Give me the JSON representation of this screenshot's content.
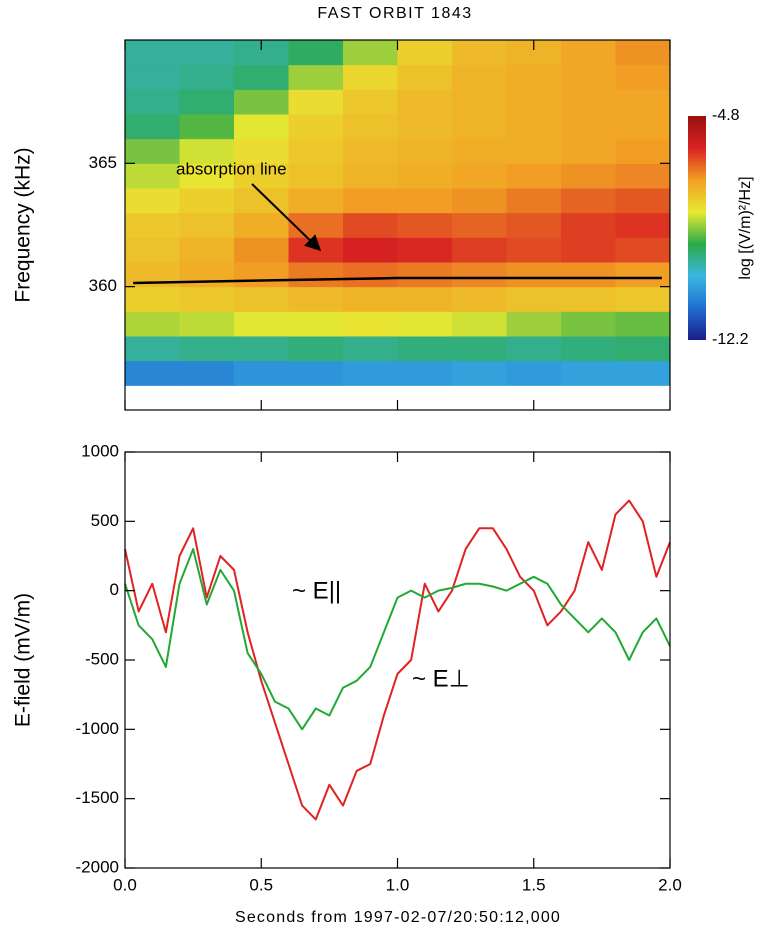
{
  "chart_data": [
    {
      "type": "heatmap",
      "title": "FAST ORBIT 1843",
      "ylabel": "Frequency (kHz)",
      "xbins": [
        0,
        0.2,
        0.4,
        0.6,
        0.8,
        1.0,
        1.2,
        1.4,
        1.6,
        1.8,
        2.0
      ],
      "ybins": [
        356,
        357,
        358,
        359,
        360,
        361,
        362,
        363,
        364,
        365,
        366,
        367,
        368,
        369,
        370
      ],
      "z": [
        [
          -10.8,
          -10.8,
          -10.6,
          -10.6,
          -10.5,
          -10.5,
          -10.4,
          -10.5,
          -10.4,
          -10.4
        ],
        [
          -9.6,
          -9.5,
          -9.5,
          -9.4,
          -9.5,
          -9.4,
          -9.4,
          -9.5,
          -9.4,
          -9.3
        ],
        [
          -8.3,
          -8.2,
          -8.0,
          -8.0,
          -7.9,
          -8.0,
          -8.1,
          -8.4,
          -8.6,
          -8.7
        ],
        [
          -7.6,
          -7.5,
          -7.4,
          -7.3,
          -7.2,
          -7.2,
          -7.3,
          -7.4,
          -7.4,
          -7.5
        ],
        [
          -7.3,
          -7.1,
          -6.9,
          -6.6,
          -6.5,
          -6.6,
          -6.7,
          -6.8,
          -6.8,
          -6.9
        ],
        [
          -7.4,
          -7.2,
          -6.8,
          -6.0,
          -5.8,
          -5.9,
          -6.1,
          -6.2,
          -6.1,
          -6.2
        ],
        [
          -7.5,
          -7.4,
          -7.1,
          -6.5,
          -6.2,
          -6.3,
          -6.4,
          -6.3,
          -6.1,
          -6.0
        ],
        [
          -7.8,
          -7.6,
          -7.4,
          -7.1,
          -6.9,
          -6.9,
          -6.8,
          -6.6,
          -6.4,
          -6.3
        ],
        [
          -8.2,
          -7.9,
          -7.6,
          -7.4,
          -7.2,
          -7.1,
          -7.0,
          -6.9,
          -6.8,
          -6.7
        ],
        [
          -8.6,
          -8.1,
          -7.8,
          -7.5,
          -7.3,
          -7.2,
          -7.1,
          -7.1,
          -7.0,
          -6.9
        ],
        [
          -9.3,
          -8.8,
          -8.0,
          -7.6,
          -7.4,
          -7.3,
          -7.2,
          -7.1,
          -7.0,
          -7.0
        ],
        [
          -9.5,
          -9.3,
          -8.6,
          -7.8,
          -7.5,
          -7.3,
          -7.2,
          -7.1,
          -7.0,
          -7.0
        ],
        [
          -9.6,
          -9.5,
          -9.3,
          -8.4,
          -7.7,
          -7.4,
          -7.2,
          -7.1,
          -7.0,
          -6.9
        ],
        [
          -9.6,
          -9.6,
          -9.5,
          -9.2,
          -8.4,
          -7.6,
          -7.3,
          -7.2,
          -7.0,
          -6.8
        ]
      ],
      "xlim": [
        0,
        2
      ],
      "xticks": [
        0,
        0.5,
        1,
        1.5,
        2
      ],
      "ylim": [
        355,
        370
      ],
      "yticks": [
        360,
        365
      ],
      "clim": [
        -12.2,
        -4.8
      ],
      "colorbar_ticks": [
        -12.2,
        -4.8
      ],
      "colorbar_label": "log [(V/m)²/Hz]",
      "colormap": [
        "#1c1c8a",
        "#1f6fd0",
        "#3cb6e0",
        "#2caa48",
        "#e8e832",
        "#f2a024",
        "#d82222",
        "#9a0f0f"
      ],
      "line": {
        "x": [
          0.03,
          0.5,
          1.0,
          1.5,
          1.97
        ],
        "values": [
          360.15,
          360.25,
          360.35,
          360.35,
          360.35
        ],
        "color": "#000000"
      },
      "annotation": "absorption line"
    },
    {
      "type": "line",
      "ylabel": "E-field (mV/m)",
      "xlabel": "Seconds from 1997-02-07/20:50:12,000",
      "x": [
        0,
        0.05,
        0.1,
        0.15,
        0.2,
        0.25,
        0.3,
        0.35,
        0.4,
        0.45,
        0.5,
        0.55,
        0.6,
        0.65,
        0.7,
        0.75,
        0.8,
        0.85,
        0.9,
        0.95,
        1.0,
        1.05,
        1.1,
        1.15,
        1.2,
        1.25,
        1.3,
        1.35,
        1.4,
        1.45,
        1.5,
        1.55,
        1.6,
        1.65,
        1.7,
        1.75,
        1.8,
        1.85,
        1.9,
        1.95,
        2.0
      ],
      "series": [
        {
          "name": "~ E⊥",
          "color": "#e02222",
          "values": [
            300,
            -150,
            50,
            -300,
            250,
            450,
            -50,
            250,
            150,
            -300,
            -650,
            -950,
            -1250,
            -1550,
            -1650,
            -1400,
            -1550,
            -1300,
            -1250,
            -900,
            -600,
            -500,
            50,
            -150,
            0,
            300,
            450,
            450,
            300,
            100,
            0,
            -250,
            -150,
            0,
            350,
            150,
            550,
            650,
            500,
            100,
            350
          ]
        },
        {
          "name": "~ E||",
          "color": "#22a834",
          "values": [
            50,
            -250,
            -350,
            -550,
            50,
            300,
            -100,
            150,
            0,
            -450,
            -600,
            -800,
            -850,
            -1000,
            -850,
            -900,
            -700,
            -650,
            -550,
            -300,
            -50,
            0,
            -50,
            0,
            20,
            50,
            50,
            30,
            0,
            50,
            100,
            50,
            -100,
            -200,
            -300,
            -200,
            -300,
            -500,
            -300,
            -200,
            -400
          ]
        }
      ],
      "xlim": [
        0,
        2
      ],
      "xticks": [
        {
          "value": 0,
          "label": "0.0"
        },
        0.5,
        {
          "value": 1,
          "label": "1.0"
        },
        1.5,
        {
          "value": 2,
          "label": "2.0"
        }
      ],
      "ylim": [
        -2000,
        1000
      ],
      "yticks": [
        -2000,
        -1500,
        -1000,
        -500,
        0,
        500,
        1000
      ]
    }
  ]
}
